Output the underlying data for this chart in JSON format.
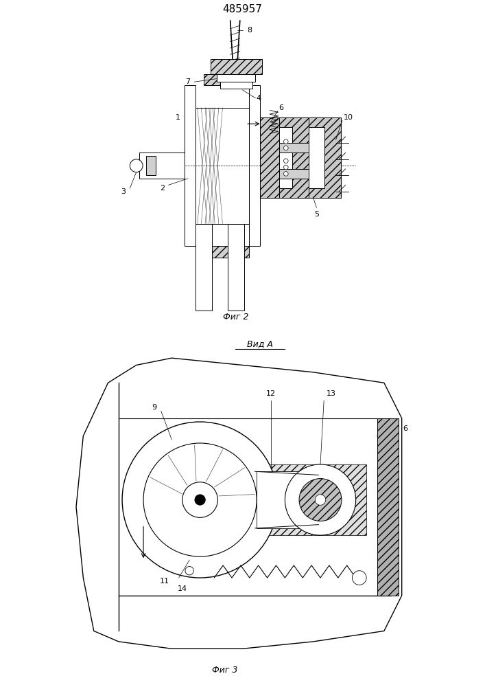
{
  "title": "485957",
  "fig2_label": "Фиг 2",
  "fig3_label": "Фиг 3",
  "vid_a_label": "Вид А",
  "background_color": "#ffffff",
  "line_color": "#000000",
  "hatch_color": "#000000",
  "title_fontsize": 11,
  "label_fontsize": 9,
  "number_fontsize": 8
}
